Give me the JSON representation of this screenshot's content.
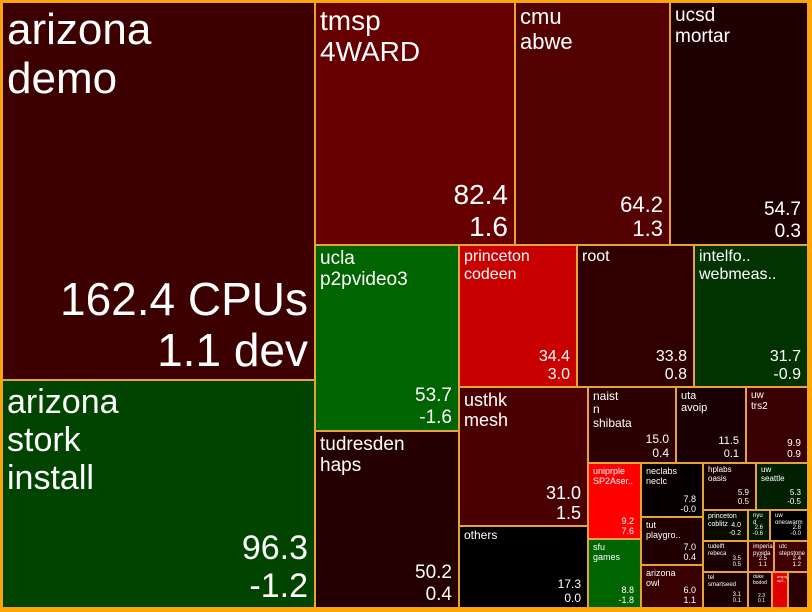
{
  "chart_data": {
    "type": "treemap",
    "value_label": "CPUs",
    "change_label": "dev",
    "color_legend": {
      "negative": "#0a6e0a",
      "neutral": "#1a0000",
      "positive": "#e00000"
    },
    "items": [
      {
        "id": "arizona-demo",
        "label": "arizona\ndemo",
        "value": "162.4 CPUs",
        "change": "1.1 dev",
        "color": "#3d0000",
        "fs": 44,
        "vfs": 46
      },
      {
        "id": "arizona-stork",
        "label": "arizona\nstork\ninstall",
        "value": "96.3",
        "change": "-1.2",
        "color": "#004400",
        "fs": 34,
        "vfs": 34
      },
      {
        "id": "tmsp-4ward",
        "label": "tmsp\n4WARD",
        "value": "82.4",
        "change": "1.6",
        "color": "#660000",
        "fs": 28,
        "vfs": 28
      },
      {
        "id": "cmu-abwe",
        "label": "cmu\nabwe",
        "value": "64.2",
        "change": "1.3",
        "color": "#520000",
        "fs": 22,
        "vfs": 22
      },
      {
        "id": "ucsd-mortar",
        "label": "ucsd\nmortar",
        "value": "54.7",
        "change": "0.3",
        "color": "#1e0000",
        "fs": 19,
        "vfs": 19
      },
      {
        "id": "ucla-p2pvideo3",
        "label": "ucla\np2pvideo3",
        "value": "53.7",
        "change": "-1.6",
        "color": "#006400",
        "fs": 19,
        "vfs": 19
      },
      {
        "id": "tudresden-haps",
        "label": "tudresden\nhaps",
        "value": "50.2",
        "change": "0.4",
        "color": "#240000",
        "fs": 19,
        "vfs": 19
      },
      {
        "id": "princeton-codeen",
        "label": "princeton\ncodeen",
        "value": "34.4",
        "change": "3.0",
        "color": "#c80000",
        "fs": 16,
        "vfs": 16
      },
      {
        "id": "root",
        "label": "root",
        "value": "33.8",
        "change": "0.8",
        "color": "#300000",
        "fs": 16,
        "vfs": 16
      },
      {
        "id": "intelfo-webmeas",
        "label": "intelfo..\nwebmeas..",
        "value": "31.7",
        "change": "-0.9",
        "color": "#003300",
        "fs": 16,
        "vfs": 16
      },
      {
        "id": "usthk-mesh",
        "label": "usthk\nmesh",
        "value": "31.0",
        "change": "1.5",
        "color": "#4a0000",
        "fs": 18,
        "vfs": 18
      },
      {
        "id": "others",
        "label": "others",
        "value": "17.3",
        "change": "0.0",
        "color": "#000000",
        "fs": 12,
        "vfs": 12
      },
      {
        "id": "naist-shibata",
        "label": "naist\nn\nshibata",
        "value": "15.0",
        "change": "0.4",
        "color": "#2a0000",
        "fs": 12,
        "vfs": 12
      },
      {
        "id": "uta-avoip",
        "label": "uta\navoip",
        "value": "11.5",
        "change": "0.1",
        "color": "#1a0000",
        "fs": 11,
        "vfs": 11
      },
      {
        "id": "uw-trs2",
        "label": "uw\ntrs2",
        "value": "9.9",
        "change": "0.9",
        "color": "#380000",
        "fs": 10,
        "vfs": 10
      },
      {
        "id": "uniprple-sp2aser",
        "label": "uniprple\nSP2Aser..",
        "value": "9.2",
        "change": "7.6",
        "color": "#ff0000",
        "fs": 9,
        "vfs": 9
      },
      {
        "id": "neclabs-neclc",
        "label": "neclabs\nneclc",
        "value": "7.8",
        "change": "-0.0",
        "color": "#080000",
        "fs": 9,
        "vfs": 9
      },
      {
        "id": "hplabs-oasis",
        "label": "hplabs\noasis",
        "value": "5.9",
        "change": "0.5",
        "color": "#1a0000",
        "fs": 8,
        "vfs": 8
      },
      {
        "id": "uw-seattle",
        "label": "uw\nseattle",
        "value": "5.3",
        "change": "-0.5",
        "color": "#002000",
        "fs": 8,
        "vfs": 8
      },
      {
        "id": "sfu-games",
        "label": "sfu\ngames",
        "value": "8.8",
        "change": "-1.8",
        "color": "#006400",
        "fs": 9,
        "vfs": 9
      },
      {
        "id": "tut-playgro",
        "label": "tut\nplaygro..",
        "value": "7.0",
        "change": "0.4",
        "color": "#200000",
        "fs": 9,
        "vfs": 9
      },
      {
        "id": "princeton-coblitz",
        "label": "princeton\ncoblitz",
        "value": "4.0",
        "change": "-0.2",
        "color": "#0a0a00",
        "fs": 7,
        "vfs": 7
      },
      {
        "id": "nyu-d",
        "label": "nyu\nd",
        "value": "2.6",
        "change": "-0.6",
        "color": "#001800",
        "fs": 6,
        "vfs": 6
      },
      {
        "id": "uw-oneswarm",
        "label": "uw\noneswarm",
        "value": "2.8",
        "change": "-0.0",
        "color": "#000000",
        "fs": 6,
        "vfs": 6
      },
      {
        "id": "arizona-owl",
        "label": "arizona\nowl",
        "value": "6.0",
        "change": "1.1",
        "color": "#380000",
        "fs": 9,
        "vfs": 9
      },
      {
        "id": "tudelft-rebeca",
        "label": "tudelft\nrebeca",
        "value": "3.5",
        "change": "0.5",
        "color": "#1a0000",
        "fs": 6,
        "vfs": 6
      },
      {
        "id": "imperial-pyxida",
        "label": "imperial\npyxida",
        "value": "2.5",
        "change": "1.1",
        "color": "#3a0000",
        "fs": 6,
        "vfs": 6
      },
      {
        "id": "utc-stepstone",
        "label": "utc\nstepstone",
        "value": "2.4",
        "change": "1.2",
        "color": "#400000",
        "fs": 6,
        "vfs": 6
      },
      {
        "id": "tel-smartseed",
        "label": "tel\nsmartseed",
        "value": "3.1",
        "change": "0.1",
        "color": "#180000",
        "fs": 6,
        "vfs": 6
      },
      {
        "id": "duke-bodo",
        "label": "duke\nbodod",
        "value": "2.3",
        "change": "0.1",
        "color": "#180000",
        "fs": 5,
        "vfs": 5
      },
      {
        "id": "small-red",
        "label": "uniprple\nsp2..",
        "value": "",
        "change": "",
        "color": "#e00000",
        "fs": 4,
        "vfs": 4
      },
      {
        "id": "small-a",
        "label": "",
        "value": "",
        "change": "",
        "color": "#2a0000",
        "fs": 4,
        "vfs": 4
      }
    ]
  }
}
